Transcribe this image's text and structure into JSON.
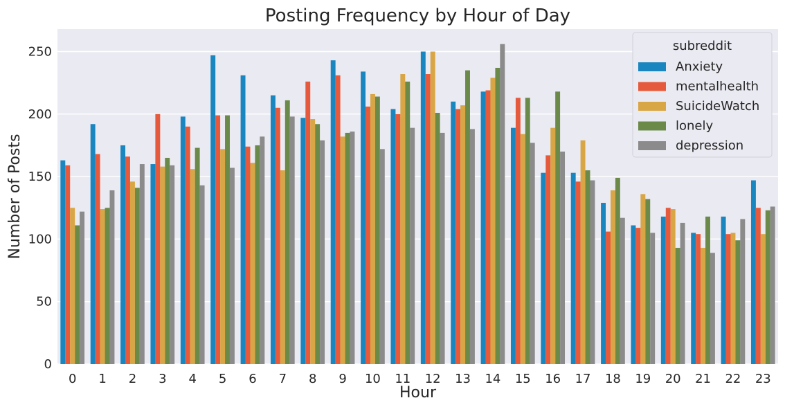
{
  "chart_data": {
    "type": "bar",
    "title": "Posting Frequency by Hour of Day",
    "xlabel": "Hour",
    "ylabel": "Number of Posts",
    "ylim": [
      0,
      268
    ],
    "yticks": [
      0,
      50,
      100,
      150,
      200,
      250
    ],
    "grid": true,
    "legend_title": "subreddit",
    "legend_position": "top-right",
    "categories": [
      "0",
      "1",
      "2",
      "3",
      "4",
      "5",
      "6",
      "7",
      "8",
      "9",
      "10",
      "11",
      "12",
      "13",
      "14",
      "15",
      "16",
      "17",
      "18",
      "19",
      "20",
      "21",
      "22",
      "23"
    ],
    "series": [
      {
        "name": "Anxiety",
        "color": "#1a86c0",
        "values": [
          163,
          192,
          175,
          160,
          198,
          247,
          231,
          215,
          197,
          243,
          234,
          204,
          250,
          210,
          218,
          189,
          153,
          153,
          129,
          111,
          118,
          105,
          118,
          147
        ]
      },
      {
        "name": "mentalhealth",
        "color": "#e55a3c",
        "values": [
          159,
          168,
          166,
          200,
          190,
          199,
          174,
          205,
          226,
          231,
          206,
          200,
          232,
          204,
          219,
          213,
          167,
          146,
          106,
          109,
          125,
          104,
          104,
          125
        ]
      },
      {
        "name": "SuicideWatch",
        "color": "#d9a645",
        "values": [
          125,
          124,
          146,
          158,
          156,
          172,
          161,
          155,
          196,
          182,
          216,
          232,
          250,
          207,
          229,
          184,
          189,
          179,
          139,
          136,
          124,
          93,
          105,
          104
        ]
      },
      {
        "name": "lonely",
        "color": "#6b8a4a",
        "values": [
          111,
          125,
          141,
          165,
          173,
          199,
          175,
          211,
          192,
          185,
          214,
          226,
          201,
          235,
          237,
          213,
          218,
          155,
          149,
          132,
          93,
          118,
          99,
          123
        ]
      },
      {
        "name": "depression",
        "color": "#8b8b8b",
        "values": [
          122,
          139,
          160,
          159,
          143,
          157,
          182,
          198,
          179,
          186,
          172,
          189,
          185,
          188,
          256,
          177,
          170,
          147,
          117,
          105,
          113,
          89,
          116,
          126
        ]
      }
    ]
  }
}
